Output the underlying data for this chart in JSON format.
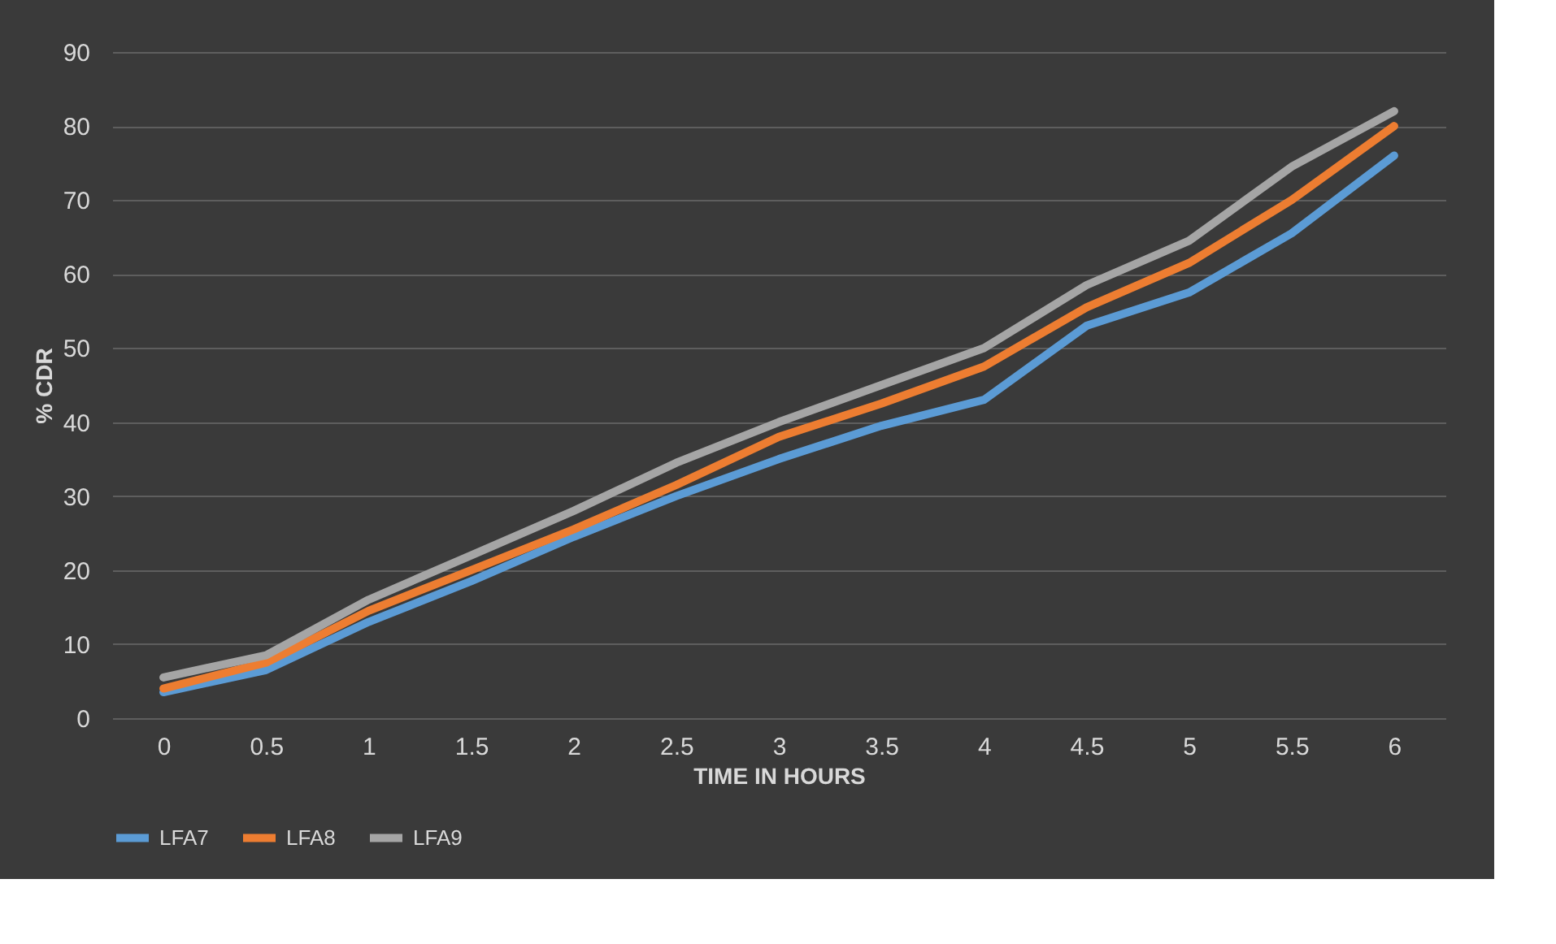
{
  "chart_data": {
    "type": "line",
    "xlabel": "TIME IN HOURS",
    "ylabel": "% CDR",
    "categories": [
      "0",
      "0.5",
      "1",
      "1.5",
      "2",
      "2.5",
      "3",
      "3.5",
      "4",
      "4.5",
      "5",
      "5.5",
      "6"
    ],
    "series": [
      {
        "name": "LFA7",
        "color": "#5b9bd5",
        "values": [
          3.5,
          6.5,
          13,
          18.5,
          24.5,
          30,
          35,
          39.5,
          43,
          53,
          57.5,
          65.5,
          76
        ]
      },
      {
        "name": "LFA8",
        "color": "#ed7d31",
        "values": [
          4,
          7.5,
          14.5,
          20,
          25.5,
          31.5,
          38,
          42.5,
          47.5,
          55.5,
          61.5,
          70,
          80
        ]
      },
      {
        "name": "LFA9",
        "color": "#a5a5a5",
        "values": [
          5.5,
          8.5,
          16,
          22,
          28,
          34.5,
          40,
          45,
          50,
          58.5,
          64.5,
          74.5,
          82
        ]
      }
    ],
    "ylim": [
      0,
      90
    ],
    "yticks": [
      0,
      10,
      20,
      30,
      40,
      50,
      60,
      70,
      80,
      90
    ],
    "grid": "y",
    "legend": "bottom",
    "marker": "none",
    "line_style": "solid"
  }
}
